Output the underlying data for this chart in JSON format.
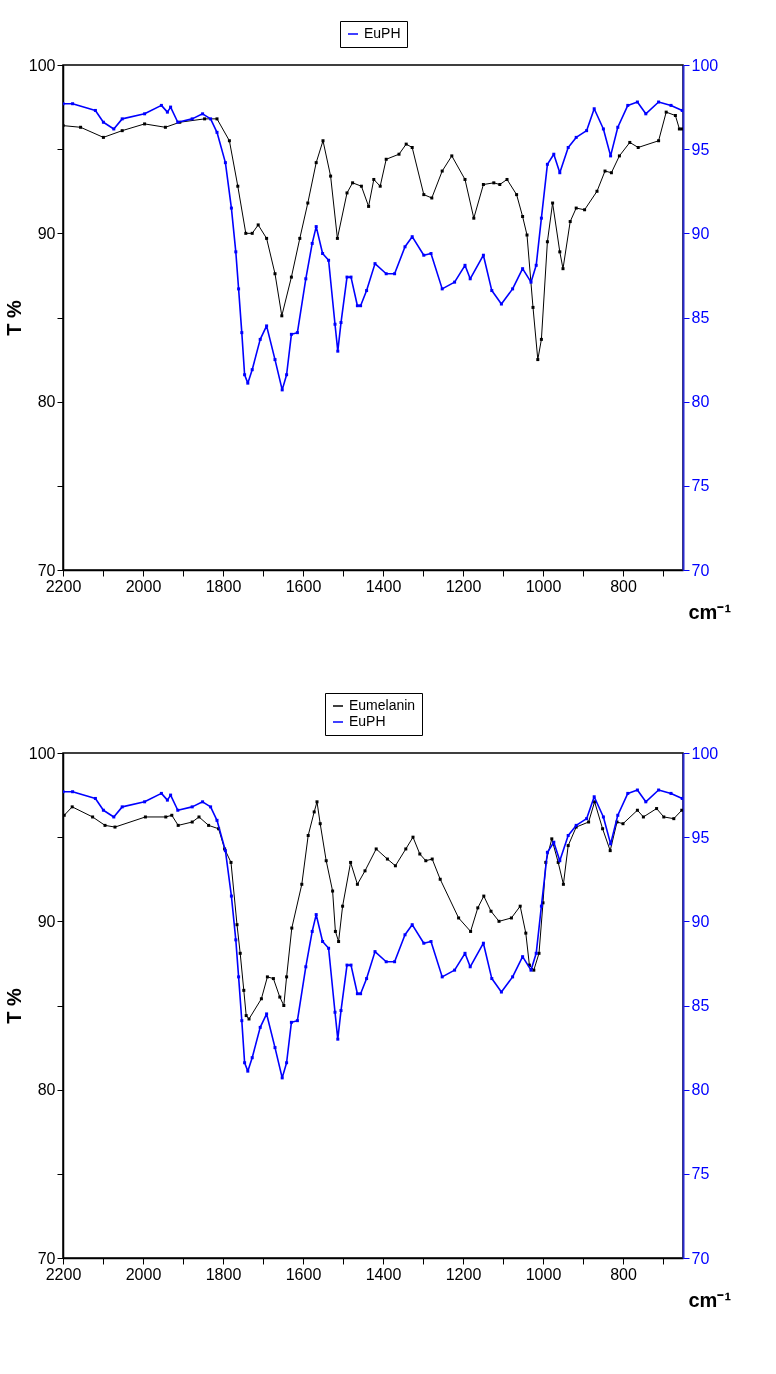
{
  "chart_data": [
    {
      "type": "line",
      "xlabel": "cm⁻¹",
      "ylabel": "T %",
      "xlim": [
        2200,
        650
      ],
      "ylim": [
        70,
        100
      ],
      "y2lim": [
        70,
        100
      ],
      "xticks": [
        2200,
        {
          "value": 2100,
          "label": null
        },
        2000,
        {
          "value": 1900,
          "label": null
        },
        1800,
        {
          "value": 1700,
          "label": null
        },
        1600,
        {
          "value": 1500,
          "label": null
        },
        1400,
        {
          "value": 1300,
          "label": null
        },
        1200,
        {
          "value": 1100,
          "label": null
        },
        1000,
        {
          "value": 900,
          "label": null
        },
        800,
        {
          "value": 700,
          "label": null
        }
      ],
      "yticks": [
        70,
        {
          "value": 75,
          "label": null
        },
        80,
        {
          "value": 85,
          "label": null
        },
        90,
        {
          "value": 95,
          "label": null
        },
        100
      ],
      "y2ticks": [
        70,
        75,
        80,
        85,
        90,
        95,
        100
      ],
      "legend": "top",
      "grid": false,
      "marker": "square",
      "line_style": "solid",
      "series": [
        {
          "color": "#000000",
          "x": [
            2200,
            2156,
            2099,
            2052,
            1996,
            1944,
            1908,
            1846,
            1815,
            1784,
            1763,
            1743,
            1727,
            1712,
            1691,
            1670,
            1653,
            1629,
            1608,
            1588,
            1567,
            1550,
            1531,
            1514,
            1490,
            1476,
            1454,
            1436,
            1423,
            1407,
            1392,
            1360,
            1342,
            1327,
            1298,
            1278,
            1252,
            1228,
            1195,
            1173,
            1149,
            1123,
            1108,
            1090,
            1066,
            1051,
            1040,
            1025,
            1013,
            1004,
            989,
            976,
            958,
            950,
            932,
            917,
            896,
            865,
            845,
            829,
            809,
            783,
            762,
            711,
            692,
            669,
            659,
            652
          ],
          "values": [
            96.4,
            96.3,
            95.7,
            96.1,
            96.5,
            96.3,
            96.6,
            96.8,
            96.8,
            95.5,
            92.8,
            90.0,
            90.0,
            90.5,
            89.7,
            87.6,
            85.1,
            87.4,
            89.7,
            91.8,
            94.2,
            95.5,
            93.4,
            89.7,
            92.4,
            93.0,
            92.8,
            91.6,
            93.2,
            92.8,
            94.4,
            94.7,
            95.3,
            95.1,
            92.3,
            92.1,
            93.7,
            94.6,
            93.2,
            90.9,
            92.9,
            93.0,
            92.9,
            93.2,
            92.3,
            91.0,
            89.9,
            85.6,
            82.5,
            83.7,
            89.5,
            91.8,
            88.9,
            87.9,
            90.7,
            91.5,
            91.4,
            92.5,
            93.7,
            93.6,
            94.6,
            95.4,
            95.1,
            95.5,
            97.2,
            97.0,
            96.2,
            96.2
          ]
        },
        {
          "name": "EuPH",
          "color": "#0000ff",
          "axis": "y2",
          "x": [
            2200,
            2176,
            2119,
            2099,
            2073,
            2052,
            1996,
            1954,
            1939,
            1931,
            1913,
            1877,
            1851,
            1831,
            1815,
            1794,
            1779,
            1768,
            1761,
            1753,
            1746,
            1738,
            1727,
            1707,
            1691,
            1670,
            1652,
            1641,
            1629,
            1614,
            1593,
            1577,
            1567,
            1551,
            1536,
            1520,
            1513,
            1505,
            1490,
            1480,
            1464,
            1456,
            1441,
            1420,
            1392,
            1371,
            1345,
            1327,
            1298,
            1280,
            1252,
            1221,
            1195,
            1182,
            1149,
            1128,
            1104,
            1076,
            1051,
            1030,
            1017,
            1004,
            989,
            973,
            958,
            937,
            917,
            891,
            872,
            849,
            831,
            813,
            788,
            764,
            743,
            711,
            680,
            652
          ],
          "values": [
            97.7,
            97.7,
            97.3,
            96.6,
            96.2,
            96.8,
            97.1,
            97.6,
            97.2,
            97.5,
            96.6,
            96.8,
            97.1,
            96.8,
            96.0,
            94.2,
            91.5,
            88.9,
            86.7,
            84.1,
            81.6,
            81.1,
            81.9,
            83.7,
            84.5,
            82.5,
            80.7,
            81.6,
            84.0,
            84.1,
            87.3,
            89.4,
            90.4,
            88.8,
            88.4,
            84.6,
            83.0,
            84.7,
            87.4,
            87.4,
            85.7,
            85.7,
            86.6,
            88.2,
            87.6,
            87.6,
            89.2,
            89.8,
            88.7,
            88.8,
            86.7,
            87.1,
            88.1,
            87.3,
            88.7,
            86.6,
            85.8,
            86.7,
            87.9,
            87.1,
            88.1,
            90.9,
            94.1,
            94.7,
            93.6,
            95.1,
            95.7,
            96.1,
            97.4,
            96.2,
            94.6,
            96.3,
            97.6,
            97.8,
            97.1,
            97.8,
            97.6,
            97.3
          ]
        }
      ]
    },
    {
      "type": "line",
      "xlabel": "cm⁻¹",
      "ylabel": "T %",
      "xlim": [
        2200,
        650
      ],
      "ylim": [
        70,
        100
      ],
      "y2lim": [
        70,
        100
      ],
      "xticks": [
        2200,
        {
          "value": 2100,
          "label": null
        },
        2000,
        {
          "value": 1900,
          "label": null
        },
        1800,
        {
          "value": 1700,
          "label": null
        },
        1600,
        {
          "value": 1500,
          "label": null
        },
        1400,
        {
          "value": 1300,
          "label": null
        },
        1200,
        {
          "value": 1100,
          "label": null
        },
        1000,
        {
          "value": 900,
          "label": null
        },
        800,
        {
          "value": 700,
          "label": null
        }
      ],
      "yticks": [
        70,
        {
          "value": 75,
          "label": null
        },
        80,
        {
          "value": 85,
          "label": null
        },
        90,
        {
          "value": 95,
          "label": null
        },
        100
      ],
      "y2ticks": [
        70,
        75,
        80,
        85,
        90,
        95,
        100
      ],
      "legend": "top",
      "grid": false,
      "marker": "square",
      "line_style": "solid",
      "series": [
        {
          "name": "Eumelanin",
          "color": "#000000",
          "x": [
            2197,
            2177,
            2126,
            2095,
            2070,
            1994,
            1943,
            1928,
            1912,
            1877,
            1860,
            1836,
            1811,
            1796,
            1780,
            1765,
            1757,
            1748,
            1742,
            1735,
            1704,
            1689,
            1674,
            1658,
            1648,
            1641,
            1628,
            1603,
            1587,
            1572,
            1565,
            1557,
            1542,
            1526,
            1519,
            1511,
            1501,
            1481,
            1464,
            1445,
            1417,
            1389,
            1369,
            1343,
            1325,
            1308,
            1293,
            1277,
            1257,
            1211,
            1181,
            1163,
            1148,
            1130,
            1110,
            1079,
            1057,
            1043,
            1034,
            1023,
            1010,
            1000,
            993,
            978,
            962,
            949,
            937,
            917,
            886,
            871,
            851,
            832,
            815,
            800,
            764,
            749,
            716,
            698,
            673,
            653
          ],
          "values": [
            96.3,
            96.8,
            96.2,
            95.7,
            95.6,
            96.2,
            96.2,
            96.3,
            95.7,
            95.9,
            96.2,
            95.7,
            95.5,
            94.3,
            93.5,
            89.8,
            88.1,
            85.9,
            84.4,
            84.2,
            85.4,
            86.7,
            86.6,
            85.5,
            85.0,
            86.7,
            89.6,
            92.2,
            95.1,
            96.5,
            97.1,
            95.8,
            93.6,
            91.8,
            89.4,
            88.8,
            90.9,
            93.5,
            92.2,
            93.0,
            94.3,
            93.7,
            93.3,
            94.3,
            95.0,
            94.0,
            93.6,
            93.7,
            92.5,
            90.2,
            89.4,
            90.8,
            91.5,
            90.6,
            90.0,
            90.2,
            90.9,
            89.3,
            87.4,
            87.1,
            88.1,
            91.1,
            93.5,
            94.9,
            93.5,
            92.2,
            94.5,
            95.6,
            95.9,
            97.1,
            95.5,
            94.2,
            95.9,
            95.8,
            96.6,
            96.2,
            96.7,
            96.2,
            96.1,
            96.6
          ]
        },
        {
          "name": "EuPH",
          "color": "#0000ff",
          "axis": "y2",
          "x": [
            2200,
            2176,
            2119,
            2099,
            2073,
            2052,
            1996,
            1954,
            1939,
            1931,
            1913,
            1877,
            1851,
            1831,
            1815,
            1794,
            1779,
            1768,
            1761,
            1753,
            1746,
            1738,
            1727,
            1707,
            1691,
            1670,
            1652,
            1641,
            1629,
            1614,
            1593,
            1577,
            1567,
            1551,
            1536,
            1520,
            1513,
            1505,
            1490,
            1480,
            1464,
            1456,
            1441,
            1420,
            1392,
            1371,
            1345,
            1327,
            1298,
            1280,
            1252,
            1221,
            1195,
            1182,
            1149,
            1128,
            1104,
            1076,
            1051,
            1030,
            1017,
            1004,
            989,
            973,
            958,
            937,
            917,
            891,
            872,
            849,
            831,
            813,
            788,
            764,
            743,
            711,
            680,
            652
          ],
          "values": [
            97.7,
            97.7,
            97.3,
            96.6,
            96.2,
            96.8,
            97.1,
            97.6,
            97.2,
            97.5,
            96.6,
            96.8,
            97.1,
            96.8,
            96.0,
            94.2,
            91.5,
            88.9,
            86.7,
            84.1,
            81.6,
            81.1,
            81.9,
            83.7,
            84.5,
            82.5,
            80.7,
            81.6,
            84.0,
            84.1,
            87.3,
            89.4,
            90.4,
            88.8,
            88.4,
            84.6,
            83.0,
            84.7,
            87.4,
            87.4,
            85.7,
            85.7,
            86.6,
            88.2,
            87.6,
            87.6,
            89.2,
            89.8,
            88.7,
            88.8,
            86.7,
            87.1,
            88.1,
            87.3,
            88.7,
            86.6,
            85.8,
            86.7,
            87.9,
            87.1,
            88.1,
            90.9,
            94.1,
            94.7,
            93.6,
            95.1,
            95.7,
            96.1,
            97.4,
            96.2,
            94.6,
            96.3,
            97.6,
            97.8,
            97.1,
            97.8,
            97.6,
            97.3
          ]
        }
      ]
    }
  ]
}
